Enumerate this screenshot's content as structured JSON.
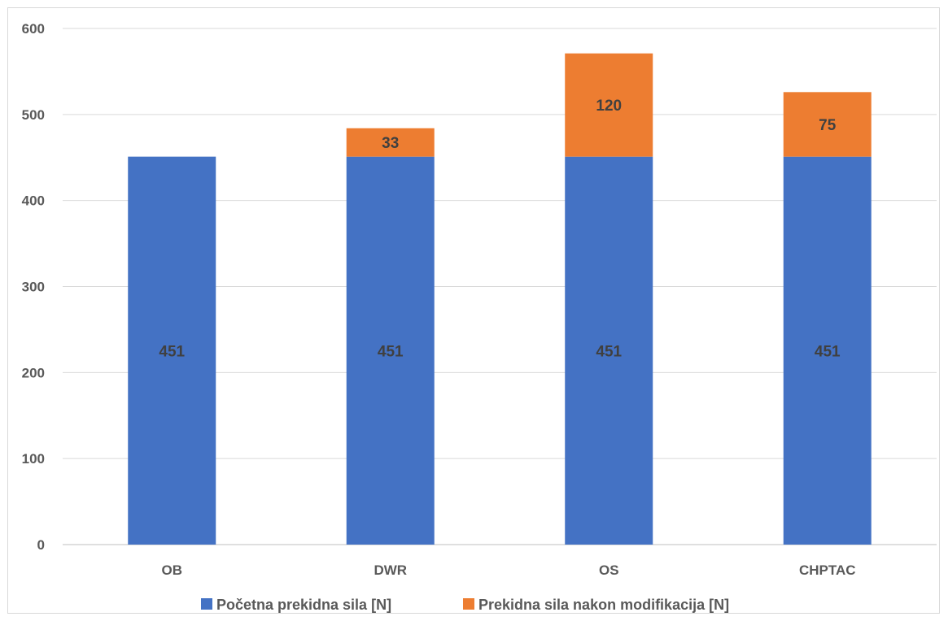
{
  "chart_data": {
    "type": "bar",
    "stacked": true,
    "categories": [
      "OB",
      "DWR",
      "OS",
      "CHPTAC"
    ],
    "series": [
      {
        "name": "Početna prekidna sila [N]",
        "values": [
          451,
          451,
          451,
          451
        ],
        "color": "#4472c4",
        "labels": [
          "451",
          "451",
          "451",
          "451"
        ]
      },
      {
        "name": "Prekidna sila nakon modifikacija [N]",
        "values": [
          0,
          33,
          120,
          75
        ],
        "color": "#ed7d31",
        "labels": [
          "",
          "33",
          "120",
          "75"
        ]
      }
    ],
    "yticks": [
      "0",
      "100",
      "200",
      "300",
      "400",
      "500",
      "600"
    ],
    "ylim": [
      0,
      600
    ],
    "grid": true,
    "legend_position": "bottom"
  }
}
